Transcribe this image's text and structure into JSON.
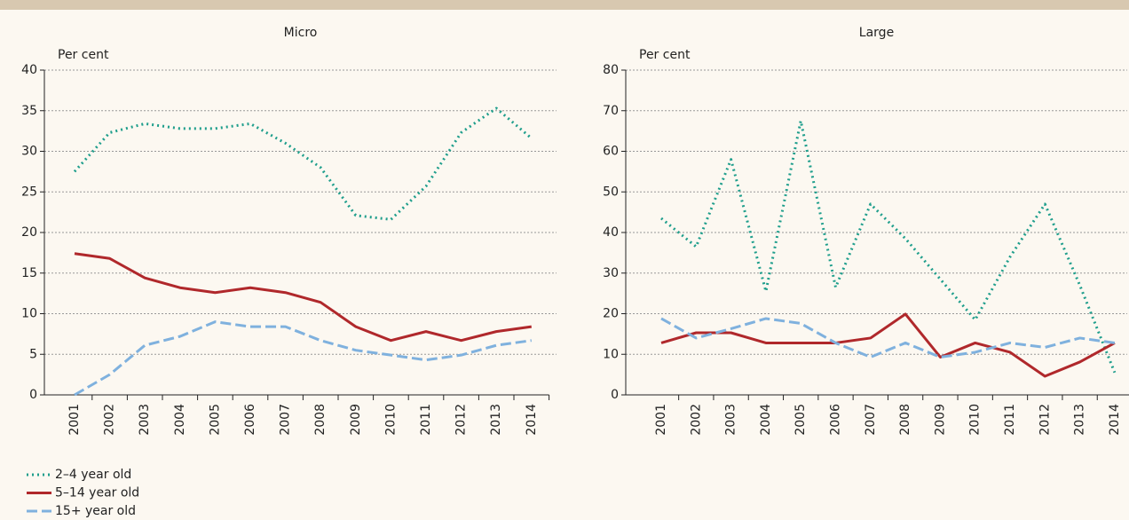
{
  "chart_data": [
    {
      "type": "line",
      "title": "Micro",
      "y_label": "Per cent",
      "categories": [
        "2001",
        "2002",
        "2003",
        "2004",
        "2005",
        "2006",
        "2007",
        "2008",
        "2009",
        "2010",
        "2011",
        "2012",
        "2013",
        "2014"
      ],
      "ylim": [
        0,
        40
      ],
      "yticks": [
        0,
        5,
        10,
        15,
        20,
        25,
        30,
        35,
        40
      ],
      "grid": true,
      "series": [
        {
          "name": "2–4 year old",
          "color": "#1f9e8c",
          "style": "dotted",
          "values": [
            27.5,
            32.3,
            33.4,
            32.8,
            32.8,
            33.4,
            31,
            28,
            22.1,
            21.6,
            25.7,
            32.3,
            35.3,
            31.6
          ]
        },
        {
          "name": "5–14 year old",
          "color": "#b0282b",
          "style": "solid",
          "values": [
            17.4,
            16.8,
            14.4,
            13.2,
            12.6,
            13.2,
            12.6,
            11.4,
            8.4,
            6.7,
            7.8,
            6.7,
            7.8,
            8.4
          ]
        },
        {
          "name": "15+ year old",
          "color": "#7fb1de",
          "style": "dashed",
          "values": [
            0,
            2.5,
            6.1,
            7.2,
            9,
            8.4,
            8.4,
            6.7,
            5.5,
            4.9,
            4.3,
            4.9,
            6.1,
            6.7
          ]
        }
      ]
    },
    {
      "type": "line",
      "title": "Large",
      "y_label": "Per cent",
      "categories": [
        "2001",
        "2002",
        "2003",
        "2004",
        "2005",
        "2006",
        "2007",
        "2008",
        "2009",
        "2010",
        "2011",
        "2012",
        "2013",
        "2014"
      ],
      "ylim": [
        0,
        80
      ],
      "yticks": [
        0,
        10,
        20,
        30,
        40,
        50,
        60,
        70,
        80
      ],
      "grid": true,
      "series": [
        {
          "color": "#1f9e8c",
          "style": "dotted",
          "values": [
            43.5,
            36.5,
            58,
            25.5,
            67.5,
            26.5,
            47,
            38.5,
            28.5,
            18.5,
            34,
            47,
            27,
            5.5
          ]
        },
        {
          "color": "#b0282b",
          "style": "solid",
          "values": [
            12.8,
            15.3,
            15.3,
            12.8,
            12.8,
            12.8,
            14,
            19.9,
            9.3,
            12.8,
            10.5,
            4.6,
            8.1,
            12.8
          ]
        },
        {
          "color": "#7fb1de",
          "style": "dashed",
          "values": [
            18.8,
            14,
            16.3,
            18.8,
            17.6,
            12.8,
            9.3,
            12.8,
            9.3,
            10.5,
            12.8,
            11.7,
            14,
            12.8
          ]
        }
      ]
    }
  ]
}
